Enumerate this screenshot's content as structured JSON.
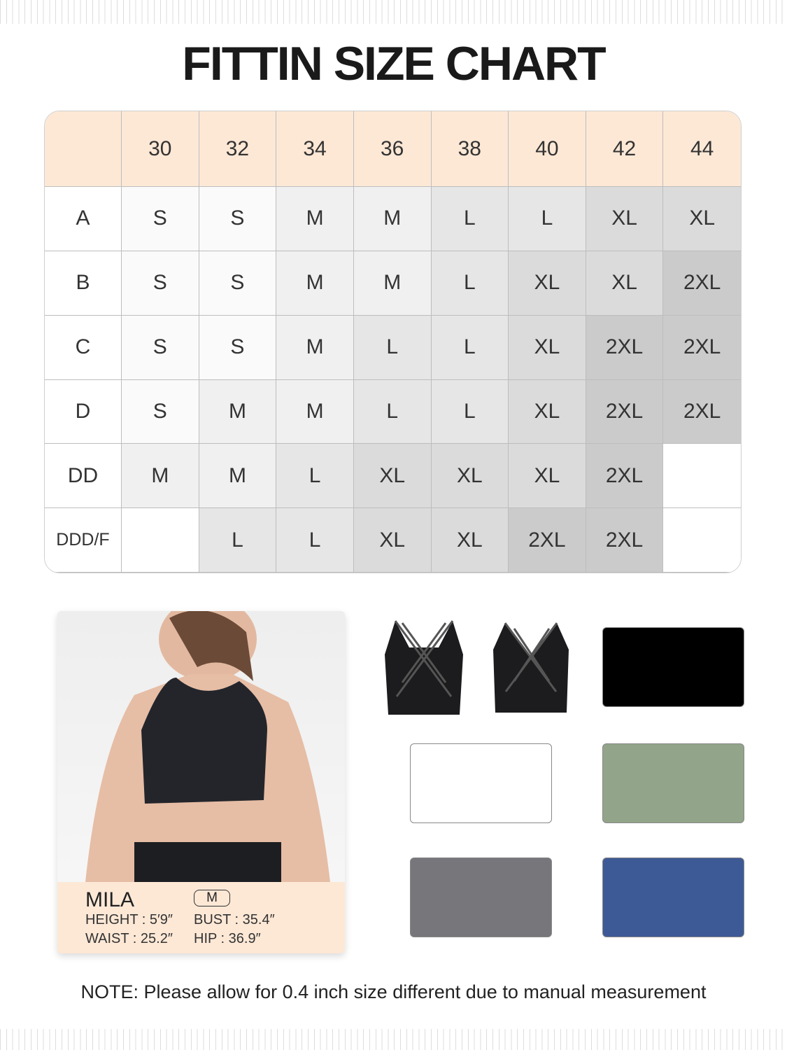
{
  "title": "FITTIN SIZE CHART",
  "size_chart": {
    "band_sizes": [
      "30",
      "32",
      "34",
      "36",
      "38",
      "40",
      "42",
      "44"
    ],
    "rows": [
      {
        "cup": "A",
        "sizes": [
          "S",
          "S",
          "M",
          "M",
          "L",
          "L",
          "XL",
          "XL"
        ]
      },
      {
        "cup": "B",
        "sizes": [
          "S",
          "S",
          "M",
          "M",
          "L",
          "XL",
          "XL",
          "2XL"
        ]
      },
      {
        "cup": "C",
        "sizes": [
          "S",
          "S",
          "M",
          "L",
          "L",
          "XL",
          "2XL",
          "2XL"
        ]
      },
      {
        "cup": "D",
        "sizes": [
          "S",
          "M",
          "M",
          "L",
          "L",
          "XL",
          "2XL",
          "2XL"
        ]
      },
      {
        "cup": "DD",
        "sizes": [
          "M",
          "M",
          "L",
          "XL",
          "XL",
          "XL",
          "2XL",
          ""
        ]
      },
      {
        "cup": "DDD/F",
        "sizes": [
          "",
          "L",
          "L",
          "XL",
          "XL",
          "2XL",
          "2XL",
          ""
        ]
      }
    ],
    "shade_colors": {
      "S": "#fafafa",
      "M": "#f0f0f0",
      "L": "#e6e6e6",
      "XL": "#dbdbdb",
      "2XL": "#cbcbcb",
      "": "#ffffff"
    },
    "header_color": "#fde8d6"
  },
  "model": {
    "name": "MILA",
    "size": "M",
    "height": "HEIGHT : 5′9″",
    "bust": "BUST : 35.4″",
    "waist": "WAIST : 25.2″",
    "hip": "HIP : 36.9″"
  },
  "swatches": [
    {
      "name": "black",
      "color": "#000000"
    },
    {
      "name": "white",
      "color": "#ffffff"
    },
    {
      "name": "green",
      "color": "#92a58a"
    },
    {
      "name": "gray",
      "color": "#77767b"
    },
    {
      "name": "blue",
      "color": "#3e5a96"
    }
  ],
  "note": "NOTE: Please allow for 0.4 inch size different due to manual measurement"
}
